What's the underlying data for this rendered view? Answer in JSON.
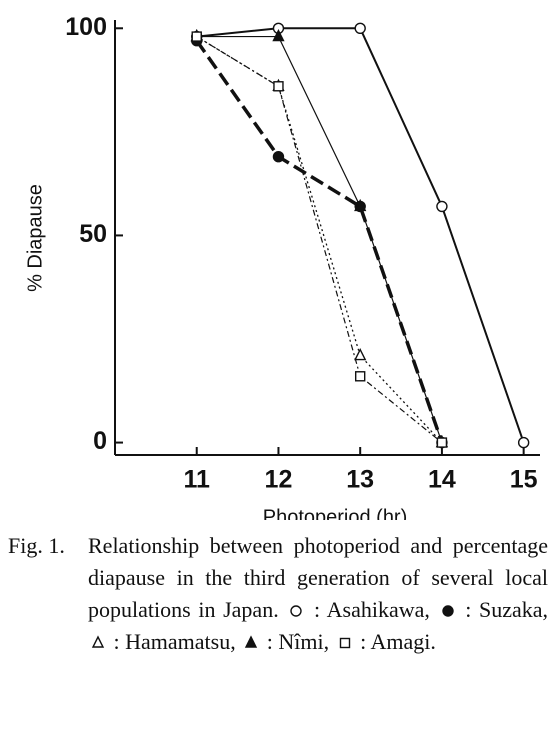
{
  "chart_data": {
    "type": "line",
    "ylabel": "% Diapause",
    "xlabel": "Photoperiod (hr)",
    "x": [
      11,
      12,
      13,
      14,
      15
    ],
    "xlim": [
      10,
      15.2
    ],
    "xticks": [
      11,
      12,
      13,
      14,
      15
    ],
    "ylim": [
      -3,
      102
    ],
    "yticks": [
      0,
      50,
      100
    ],
    "series": [
      {
        "name": "Asahikawa",
        "color": "#111111",
        "marker": "circle-open",
        "dash": "solid",
        "values": [
          98,
          100,
          100,
          57,
          0
        ]
      },
      {
        "name": "Suzaka",
        "color": "#111111",
        "marker": "circle-filled",
        "dash": "long-dash",
        "values": [
          97,
          69,
          57,
          0,
          null
        ]
      },
      {
        "name": "Hamamatsu",
        "color": "#111111",
        "marker": "triangle-open",
        "dash": "dotted",
        "values": [
          98,
          86,
          21,
          0,
          null
        ]
      },
      {
        "name": "Nîmi",
        "color": "#111111",
        "marker": "triangle-filled",
        "dash": "thin",
        "values": [
          98,
          98,
          57,
          0,
          null
        ]
      },
      {
        "name": "Amagi",
        "color": "#111111",
        "marker": "square-open",
        "dash": "dash-dot",
        "values": [
          98,
          86,
          16,
          0,
          null
        ]
      }
    ],
    "caption": {
      "label": "Fig. 1.",
      "text": "Relationship between photoperiod and percentage diapause in the third generation of several local populations in Japan.",
      "legend_separator": ":",
      "legend_delimiter": ",",
      "legend_end": "."
    }
  }
}
